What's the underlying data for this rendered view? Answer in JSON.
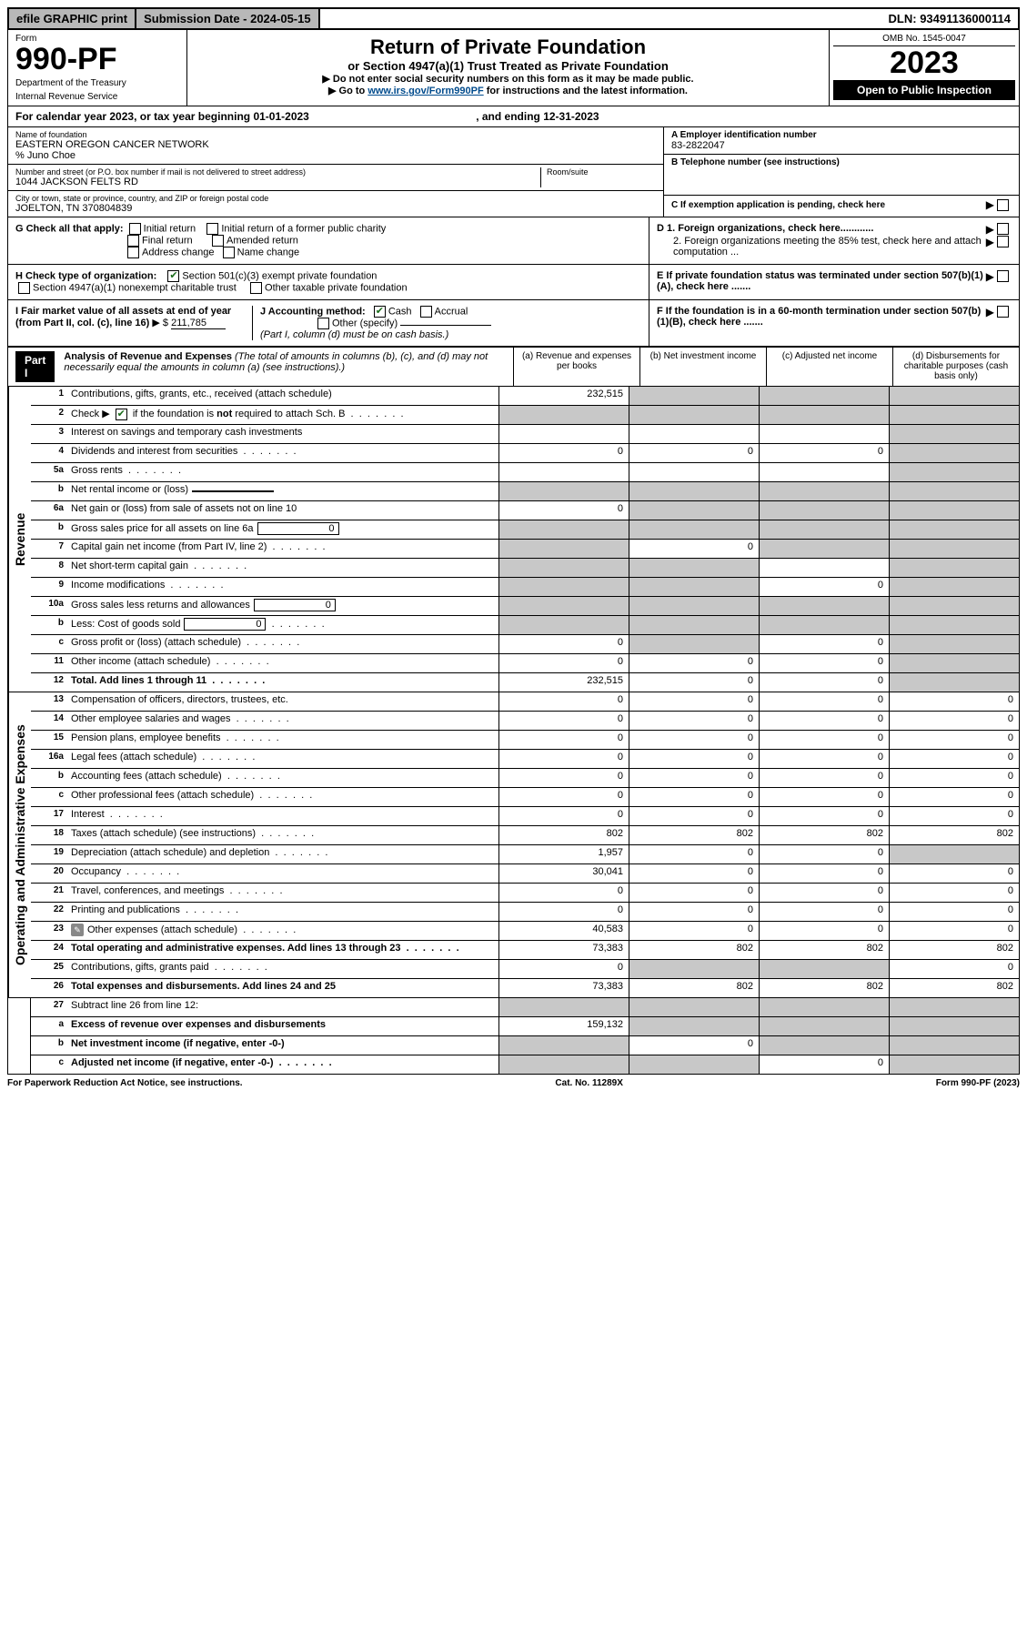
{
  "top": {
    "efile": "efile GRAPHIC print",
    "submission": "Submission Date - 2024-05-15",
    "dln": "DLN: 93491136000114"
  },
  "header": {
    "form_word": "Form",
    "form_no": "990-PF",
    "dept": "Department of the Treasury",
    "irs": "Internal Revenue Service",
    "title": "Return of Private Foundation",
    "subtitle": "or Section 4947(a)(1) Trust Treated as Private Foundation",
    "note1": "▶ Do not enter social security numbers on this form as it may be made public.",
    "note2_pre": "▶ Go to ",
    "note2_link": "www.irs.gov/Form990PF",
    "note2_post": " for instructions and the latest information.",
    "omb": "OMB No. 1545-0047",
    "year": "2023",
    "open": "Open to Public Inspection"
  },
  "cal": {
    "text_pre": "For calendar year 2023, or tax year beginning ",
    "begin": "01-01-2023",
    "mid": ", and ending ",
    "end": "12-31-2023"
  },
  "info": {
    "name_label": "Name of foundation",
    "name": "EASTERN OREGON CANCER NETWORK",
    "care_of": "% Juno Choe",
    "addr_label": "Number and street (or P.O. box number if mail is not delivered to street address)",
    "addr": "1044 JACKSON FELTS RD",
    "room_label": "Room/suite",
    "city_label": "City or town, state or province, country, and ZIP or foreign postal code",
    "city": "JOELTON, TN  370804839",
    "ein_label": "A Employer identification number",
    "ein": "83-2822047",
    "tel_label": "B Telephone number (see instructions)",
    "c_label": "C If exemption application is pending, check here",
    "d1_label": "D 1. Foreign organizations, check here............",
    "d2_label": "2. Foreign organizations meeting the 85% test, check here and attach computation ...",
    "e_label": "E If private foundation status was terminated under section 507(b)(1)(A), check here .......",
    "f_label": "F If the foundation is in a 60-month termination under section 507(b)(1)(B), check here .......",
    "g_label": "G Check all that apply:",
    "g_opts": [
      "Initial return",
      "Initial return of a former public charity",
      "Final return",
      "Amended return",
      "Address change",
      "Name change"
    ],
    "h_label": "H Check type of organization:",
    "h_opt1": "Section 501(c)(3) exempt private foundation",
    "h_opt2": "Section 4947(a)(1) nonexempt charitable trust",
    "h_opt3": "Other taxable private foundation",
    "i_label": "I Fair market value of all assets at end of year (from Part II, col. (c), line 16)",
    "i_prefix": "▶ $",
    "i_value": "211,785",
    "j_label": "J Accounting method:",
    "j_cash": "Cash",
    "j_accrual": "Accrual",
    "j_other": "Other (specify)",
    "j_note": "(Part I, column (d) must be on cash basis.)"
  },
  "part1": {
    "tag": "Part I",
    "heading": "Analysis of Revenue and Expenses",
    "heading_note": "(The total of amounts in columns (b), (c), and (d) may not necessarily equal the amounts in column (a) (see instructions).)",
    "col_a": "(a) Revenue and expenses per books",
    "col_b": "(b) Net investment income",
    "col_c": "(c) Adjusted net income",
    "col_d": "(d) Disbursements for charitable purposes (cash basis only)"
  },
  "sections": {
    "revenue": "Revenue",
    "expenses": "Operating and Administrative Expenses"
  },
  "rows": [
    {
      "n": "1",
      "label": "Contributions, gifts, grants, etc., received (attach schedule)",
      "a": "232,515",
      "b": "grey",
      "c": "grey",
      "d": "grey"
    },
    {
      "n": "2",
      "label": "Check ▶ ☑ if the foundation is not required to attach Sch. B",
      "a": "grey",
      "b": "grey",
      "c": "grey",
      "d": "grey",
      "checked": true,
      "dots": true
    },
    {
      "n": "3",
      "label": "Interest on savings and temporary cash investments",
      "a": "",
      "b": "",
      "c": "",
      "d": "grey"
    },
    {
      "n": "4",
      "label": "Dividends and interest from securities",
      "a": "0",
      "b": "0",
      "c": "0",
      "d": "grey",
      "dots": true
    },
    {
      "n": "5a",
      "label": "Gross rents",
      "a": "",
      "b": "",
      "c": "",
      "d": "grey",
      "dots": true
    },
    {
      "n": "b",
      "label": "Net rental income or (loss)",
      "a": "grey",
      "b": "grey",
      "c": "grey",
      "d": "grey",
      "inline_box": ""
    },
    {
      "n": "6a",
      "label": "Net gain or (loss) from sale of assets not on line 10",
      "a": "0",
      "b": "grey",
      "c": "grey",
      "d": "grey"
    },
    {
      "n": "b",
      "label": "Gross sales price for all assets on line 6a",
      "a": "grey",
      "b": "grey",
      "c": "grey",
      "d": "grey",
      "inline_box": "0"
    },
    {
      "n": "7",
      "label": "Capital gain net income (from Part IV, line 2)",
      "a": "grey",
      "b": "0",
      "c": "grey",
      "d": "grey",
      "dots": true
    },
    {
      "n": "8",
      "label": "Net short-term capital gain",
      "a": "grey",
      "b": "grey",
      "c": "",
      "d": "grey",
      "dots": true
    },
    {
      "n": "9",
      "label": "Income modifications",
      "a": "grey",
      "b": "grey",
      "c": "0",
      "d": "grey",
      "dots": true
    },
    {
      "n": "10a",
      "label": "Gross sales less returns and allowances",
      "a": "grey",
      "b": "grey",
      "c": "grey",
      "d": "grey",
      "inline_box": "0"
    },
    {
      "n": "b",
      "label": "Less: Cost of goods sold",
      "a": "grey",
      "b": "grey",
      "c": "grey",
      "d": "grey",
      "inline_box": "0",
      "dots": true
    },
    {
      "n": "c",
      "label": "Gross profit or (loss) (attach schedule)",
      "a": "0",
      "b": "grey",
      "c": "0",
      "d": "grey",
      "dots": true
    },
    {
      "n": "11",
      "label": "Other income (attach schedule)",
      "a": "0",
      "b": "0",
      "c": "0",
      "d": "grey",
      "dots": true
    },
    {
      "n": "12",
      "label": "Total. Add lines 1 through 11",
      "a": "232,515",
      "b": "0",
      "c": "0",
      "d": "grey",
      "bold": true,
      "dots": true
    }
  ],
  "exp_rows": [
    {
      "n": "13",
      "label": "Compensation of officers, directors, trustees, etc.",
      "a": "0",
      "b": "0",
      "c": "0",
      "d": "0"
    },
    {
      "n": "14",
      "label": "Other employee salaries and wages",
      "a": "0",
      "b": "0",
      "c": "0",
      "d": "0",
      "dots": true
    },
    {
      "n": "15",
      "label": "Pension plans, employee benefits",
      "a": "0",
      "b": "0",
      "c": "0",
      "d": "0",
      "dots": true
    },
    {
      "n": "16a",
      "label": "Legal fees (attach schedule)",
      "a": "0",
      "b": "0",
      "c": "0",
      "d": "0",
      "dots": true
    },
    {
      "n": "b",
      "label": "Accounting fees (attach schedule)",
      "a": "0",
      "b": "0",
      "c": "0",
      "d": "0",
      "dots": true
    },
    {
      "n": "c",
      "label": "Other professional fees (attach schedule)",
      "a": "0",
      "b": "0",
      "c": "0",
      "d": "0",
      "dots": true
    },
    {
      "n": "17",
      "label": "Interest",
      "a": "0",
      "b": "0",
      "c": "0",
      "d": "0",
      "dots": true
    },
    {
      "n": "18",
      "label": "Taxes (attach schedule) (see instructions)",
      "a": "802",
      "b": "802",
      "c": "802",
      "d": "802",
      "dots": true
    },
    {
      "n": "19",
      "label": "Depreciation (attach schedule) and depletion",
      "a": "1,957",
      "b": "0",
      "c": "0",
      "d": "grey",
      "dots": true
    },
    {
      "n": "20",
      "label": "Occupancy",
      "a": "30,041",
      "b": "0",
      "c": "0",
      "d": "0",
      "dots": true
    },
    {
      "n": "21",
      "label": "Travel, conferences, and meetings",
      "a": "0",
      "b": "0",
      "c": "0",
      "d": "0",
      "dots": true
    },
    {
      "n": "22",
      "label": "Printing and publications",
      "a": "0",
      "b": "0",
      "c": "0",
      "d": "0",
      "dots": true
    },
    {
      "n": "23",
      "label": "Other expenses (attach schedule)",
      "a": "40,583",
      "b": "0",
      "c": "0",
      "d": "0",
      "icon": true,
      "dots": true
    },
    {
      "n": "24",
      "label": "Total operating and administrative expenses. Add lines 13 through 23",
      "a": "73,383",
      "b": "802",
      "c": "802",
      "d": "802",
      "bold": true,
      "dots": true
    },
    {
      "n": "25",
      "label": "Contributions, gifts, grants paid",
      "a": "0",
      "b": "grey",
      "c": "grey",
      "d": "0",
      "dots": true
    },
    {
      "n": "26",
      "label": "Total expenses and disbursements. Add lines 24 and 25",
      "a": "73,383",
      "b": "802",
      "c": "802",
      "d": "802",
      "bold": true
    }
  ],
  "bottom_rows": [
    {
      "n": "27",
      "label": "Subtract line 26 from line 12:",
      "a": "grey",
      "b": "grey",
      "c": "grey",
      "d": "grey"
    },
    {
      "n": "a",
      "label": "Excess of revenue over expenses and disbursements",
      "a": "159,132",
      "b": "grey",
      "c": "grey",
      "d": "grey",
      "bold": true
    },
    {
      "n": "b",
      "label": "Net investment income (if negative, enter -0-)",
      "a": "grey",
      "b": "0",
      "c": "grey",
      "d": "grey",
      "bold": true
    },
    {
      "n": "c",
      "label": "Adjusted net income (if negative, enter -0-)",
      "a": "grey",
      "b": "grey",
      "c": "0",
      "d": "grey",
      "bold": true,
      "dots": true
    }
  ],
  "footer": {
    "left": "For Paperwork Reduction Act Notice, see instructions.",
    "mid": "Cat. No. 11289X",
    "right": "Form 990-PF (2023)"
  }
}
